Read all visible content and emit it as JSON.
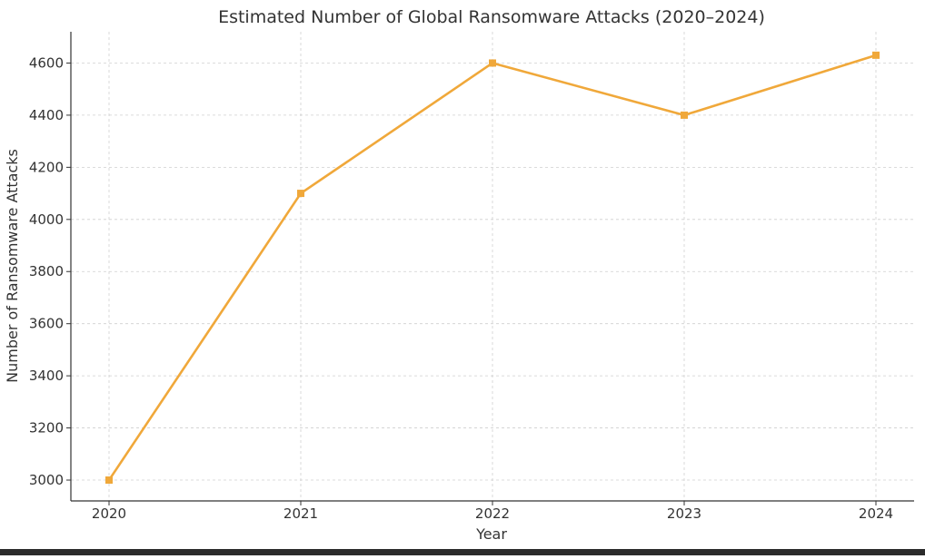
{
  "chart_data": {
    "type": "line",
    "title": "Estimated Number of Global Ransomware Attacks (2020–2024)",
    "xlabel": "Year",
    "ylabel": "Number of Ransomware Attacks",
    "x": [
      "2020",
      "2021",
      "2022",
      "2023",
      "2024"
    ],
    "series": [
      {
        "values": [
          3000,
          4100,
          4600,
          4400,
          4630
        ],
        "color": "#f0a83a",
        "marker": "square"
      }
    ],
    "yticks": [
      3000,
      3200,
      3400,
      3600,
      3800,
      4000,
      4200,
      4400,
      4600
    ],
    "ylim": [
      2920,
      4720
    ],
    "grid": true,
    "grid_style": "dashed"
  }
}
